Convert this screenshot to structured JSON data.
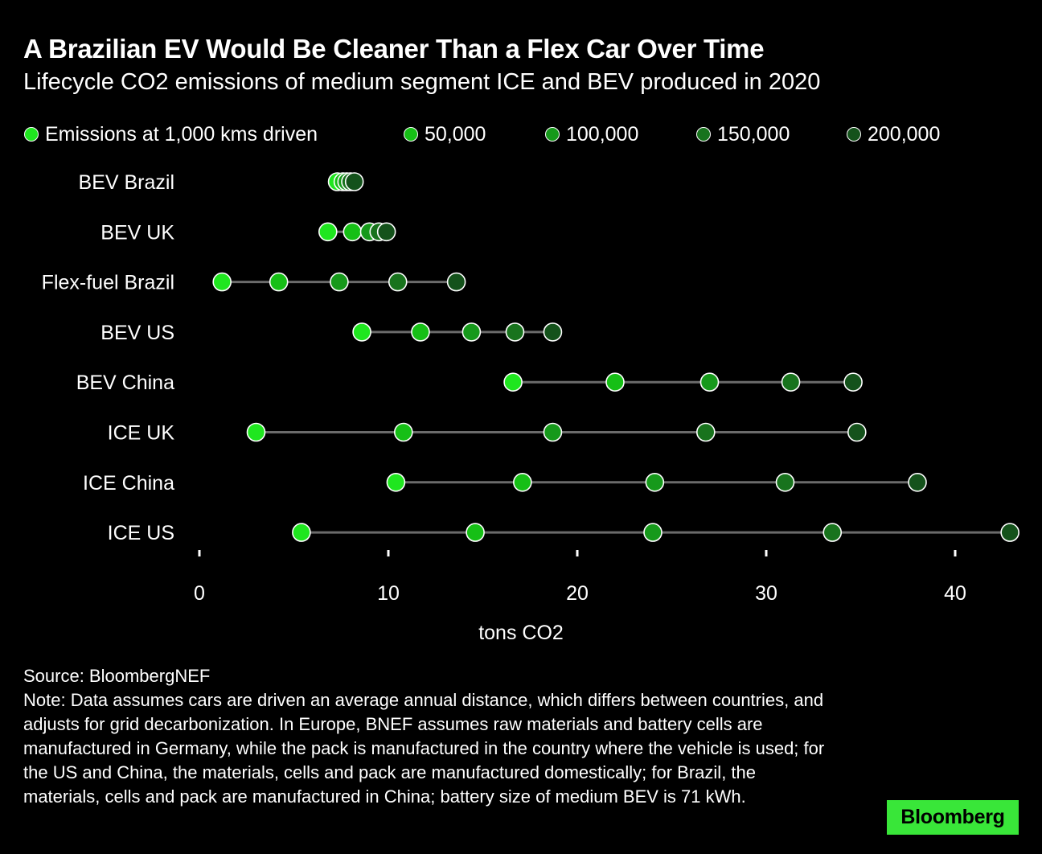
{
  "title": "A Brazilian EV Would Be Cleaner Than a Flex Car Over Time",
  "subtitle": "Lifecycle CO2 emissions of medium segment ICE and BEV produced in 2020",
  "legend": [
    {
      "label": "Emissions at 1,000 kms driven",
      "color": "#1fe61f"
    },
    {
      "label": "50,000",
      "color": "#16bf16"
    },
    {
      "label": "100,000",
      "color": "#16991b"
    },
    {
      "label": "150,000",
      "color": "#18731d"
    },
    {
      "label": "200,000",
      "color": "#14521b"
    }
  ],
  "chart_data": {
    "type": "scatter",
    "subtype": "dot-plot",
    "xlabel": "tons CO2",
    "xlim": [
      0,
      43
    ],
    "xticks": [
      0,
      10,
      20,
      30,
      40
    ],
    "categories": [
      "BEV Brazil",
      "BEV UK",
      "Flex-fuel Brazil",
      "BEV US",
      "BEV China",
      "ICE UK",
      "ICE China",
      "ICE US"
    ],
    "series": [
      {
        "name": "Emissions at 1,000 kms driven",
        "values": [
          7.3,
          6.8,
          1.2,
          8.6,
          16.6,
          3.0,
          10.4,
          5.4
        ]
      },
      {
        "name": "50,000",
        "values": [
          7.6,
          8.1,
          4.2,
          11.7,
          22.0,
          10.8,
          17.1,
          14.6
        ]
      },
      {
        "name": "100,000",
        "values": [
          7.8,
          9.0,
          7.4,
          14.4,
          27.0,
          18.7,
          24.1,
          24.0
        ]
      },
      {
        "name": "150,000",
        "values": [
          8.0,
          9.5,
          10.5,
          16.7,
          31.3,
          26.8,
          31.0,
          33.5
        ]
      },
      {
        "name": "200,000",
        "values": [
          8.2,
          9.9,
          13.6,
          18.7,
          34.6,
          34.8,
          38.0,
          42.9
        ]
      }
    ]
  },
  "source": "Source: BloombergNEF",
  "note": "Note: Data assumes cars are driven an average annual distance, which differs between countries, and adjusts for grid decarbonization. In Europe, BNEF assumes raw materials and battery cells are manufactured in Germany, while the pack is manufactured in the country where the vehicle is used; for the US and China, the materials, cells and pack are manufactured domestically; for Brazil, the materials, cells and pack are manufactured in China; battery size of medium BEV is 71 kWh.",
  "brand": "Bloomberg"
}
